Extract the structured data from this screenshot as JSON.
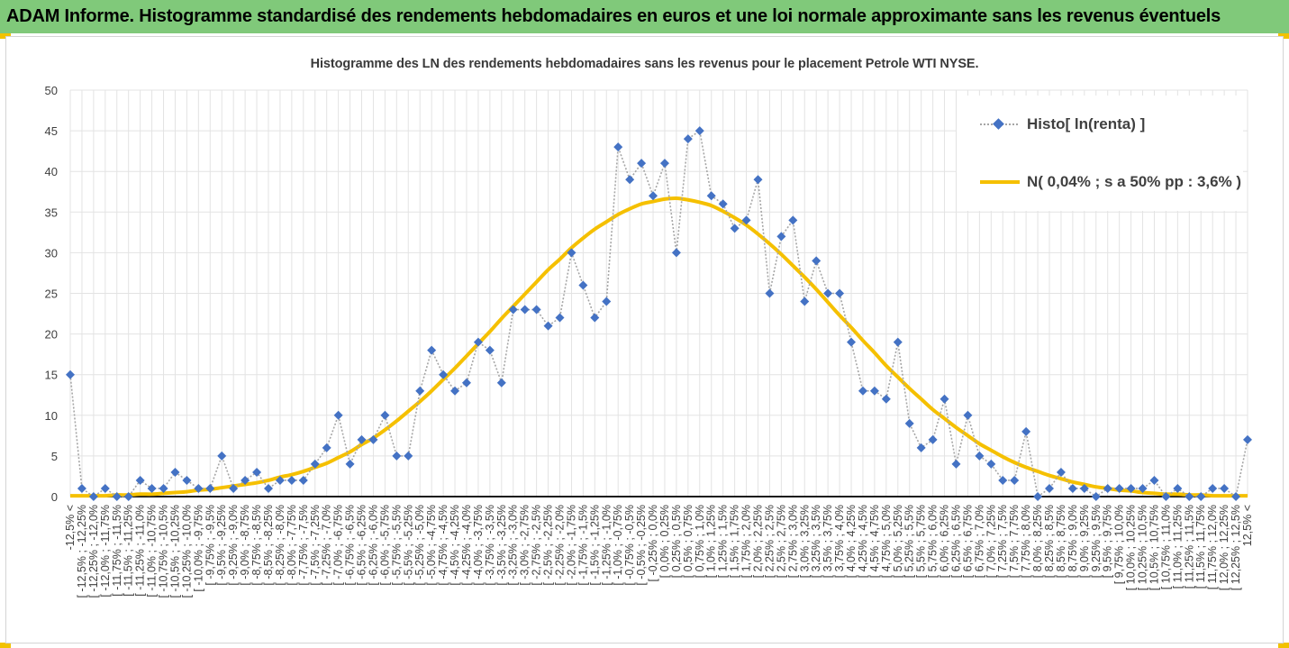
{
  "banner": {
    "title": "ADAM Informe. Histogramme standardisé des rendements hebdomadaires en euros et une loi normale approximante sans les revenus éventuels"
  },
  "colors": {
    "banner_bg": "#80c97a",
    "histo_series": "#4472c4",
    "histo_line": "#a6a6a6",
    "normal_curve": "#f5c000",
    "corner_accent": "#f2c200"
  },
  "chart_data": {
    "type": "line",
    "title": "Histogramme  des LN des rendements hebdomadaires sans les revenus pour le placement Petrole WTI NYSE.",
    "xlabel": "",
    "ylabel": "",
    "ylim": [
      0,
      50
    ],
    "yticks": [
      0,
      5,
      10,
      15,
      20,
      25,
      30,
      35,
      40,
      45,
      50
    ],
    "grid": true,
    "legend_position": "top-right",
    "categories": [
      "-12,5% <",
      "[ -12,5% ; -12,25%",
      "[ -12,25% ; -12,0%",
      "[ -12,0% ; -11,75%",
      "[ -11,75% ; -11,5%",
      "[ -11,5% ; -11,25%",
      "[ -11,25% ; -11,0%",
      "[ -11,0% ; -10,75%",
      "[ -10,75% ; -10,5%",
      "[ -10,5% ; -10,25%",
      "[ -10,25% ; -10,0%",
      "[ -10,0% ; -9,75%",
      "[ -9,75% ; -9,5%",
      "[ -9,5% ; -9,25%",
      "[ -9,25% ; -9,0%",
      "[ -9,0% ; -8,75%",
      "[ -8,75% ; -8,5%",
      "[ -8,5% ; -8,25%",
      "[ -8,25% ; -8,0%",
      "[ -8,0% ; -7,75%",
      "[ -7,75% ; -7,5%",
      "[ -7,5% ; -7,25%",
      "[ -7,25% ; -7,0%",
      "[ -7,0% ; -6,75%",
      "[ -6,75% ; -6,5%",
      "[ -6,5% ; -6,25%",
      "[ -6,25% ; -6,0%",
      "[ -6,0% ; -5,75%",
      "[ -5,75% ; -5,5%",
      "[ -5,5% ; -5,25%",
      "[ -5,25% ; -5,0%",
      "[ -5,0% ; -4,75%",
      "[ -4,75% ; -4,5%",
      "[ -4,5% ; -4,25%",
      "[ -4,25% ; -4,0%",
      "[ -4,0% ; -3,75%",
      "[ -3,75% ; -3,5%",
      "[ -3,5% ; -3,25%",
      "[ -3,25% ; -3,0%",
      "[ -3,0% ; -2,75%",
      "[ -2,75% ; -2,5%",
      "[ -2,5% ; -2,25%",
      "[ -2,25% ; -2,0%",
      "[ -2,0% ; -1,75%",
      "[ -1,75% ; -1,5%",
      "[ -1,5% ; -1,25%",
      "[ -1,25% ; -1,0%",
      "[ -1,0% ; -0,75%",
      "[ -0,75% ; -0,5%",
      "[ -0,5% ; -0,25%",
      "[ -0,25% ; 0,0%",
      "[ 0,0% ; 0,25%",
      "[ 0,25% ; 0,5%",
      "[ 0,5% ; 0,75%",
      "[ 0,75% ; 1,0%",
      "[ 1,0% ; 1,25%",
      "[ 1,25% ; 1,5%",
      "[ 1,5% ; 1,75%",
      "[ 1,75% ; 2,0%",
      "[ 2,0% ; 2,25%",
      "[ 2,25% ; 2,5%",
      "[ 2,5% ; 2,75%",
      "[ 2,75% ; 3,0%",
      "[ 3,0% ; 3,25%",
      "[ 3,25% ; 3,5%",
      "[ 3,5% ; 3,75%",
      "[ 3,75% ; 4,0%",
      "[ 4,0% ; 4,25%",
      "[ 4,25% ; 4,5%",
      "[ 4,5% ; 4,75%",
      "[ 4,75% ; 5,0%",
      "[ 5,0% ; 5,25%",
      "[ 5,25% ; 5,5%",
      "[ 5,5% ; 5,75%",
      "[ 5,75% ; 6,0%",
      "[ 6,0% ; 6,25%",
      "[ 6,25% ; 6,5%",
      "[ 6,5% ; 6,75%",
      "[ 6,75% ; 7,0%",
      "[ 7,0% ; 7,25%",
      "[ 7,25% ; 7,5%",
      "[ 7,5% ; 7,75%",
      "[ 7,75% ; 8,0%",
      "[ 8,0% ; 8,25%",
      "[ 8,25% ; 8,5%",
      "[ 8,5% ; 8,75%",
      "[ 8,75% ; 9,0%",
      "[ 9,0% ; 9,25%",
      "[ 9,25% ; 9,5%",
      "[ 9,5% ; 9,75%",
      "[ 9,75% ; 10,0%",
      "[ 10,0% ; 10,25%",
      "[ 10,25% ; 10,5%",
      "[ 10,5% ; 10,75%",
      "[ 10,75% ; 11,0%",
      "[ 11,0% ; 11,25%",
      "[ 11,25% ; 11,5%",
      "[ 11,5% ; 11,75%",
      "[ 11,75% ; 12,0%",
      "[ 12,0% ; 12,25%",
      "[ 12,25% ; 12,5%",
      "12,5% <"
    ],
    "series": [
      {
        "name": "Histo[ ln(renta) ]",
        "type": "line-markers",
        "values": [
          15,
          1,
          0,
          1,
          0,
          0,
          2,
          1,
          1,
          3,
          2,
          1,
          1,
          5,
          1,
          2,
          3,
          1,
          2,
          2,
          2,
          4,
          6,
          10,
          4,
          7,
          7,
          10,
          5,
          5,
          13,
          18,
          15,
          13,
          14,
          19,
          18,
          14,
          23,
          23,
          23,
          21,
          22,
          30,
          26,
          22,
          24,
          43,
          39,
          41,
          37,
          41,
          30,
          44,
          45,
          37,
          36,
          33,
          34,
          39,
          25,
          32,
          34,
          24,
          29,
          25,
          25,
          19,
          13,
          13,
          12,
          19,
          9,
          6,
          7,
          12,
          4,
          10,
          5,
          4,
          2,
          2,
          8,
          0,
          1,
          3,
          1,
          1,
          0,
          1,
          1,
          1,
          1,
          2,
          0,
          1,
          0,
          0,
          1,
          1,
          0,
          7
        ]
      },
      {
        "name": "N( 0,04% ; s a 50% pp : 3,6% )",
        "type": "line",
        "values": [
          0.1,
          0.1,
          0.1,
          0.1,
          0.2,
          0.2,
          0.3,
          0.3,
          0.4,
          0.5,
          0.6,
          0.8,
          0.9,
          1.1,
          1.3,
          1.5,
          1.7,
          2.0,
          2.4,
          2.7,
          3.1,
          3.6,
          4.1,
          4.8,
          5.5,
          6.4,
          7.2,
          8.2,
          9.3,
          10.5,
          11.7,
          13.0,
          14.4,
          15.8,
          17.3,
          18.8,
          20.3,
          21.9,
          23.4,
          24.9,
          26.4,
          27.9,
          29.2,
          30.6,
          31.8,
          32.9,
          33.8,
          34.7,
          35.4,
          36.0,
          36.3,
          36.6,
          36.7,
          36.5,
          36.2,
          35.8,
          35.1,
          34.3,
          33.4,
          32.3,
          31.1,
          29.8,
          28.4,
          27.0,
          25.5,
          23.9,
          22.3,
          20.8,
          19.2,
          17.7,
          16.1,
          14.7,
          13.3,
          12.0,
          10.7,
          9.6,
          8.5,
          7.5,
          6.5,
          5.7,
          4.9,
          4.2,
          3.6,
          3.1,
          2.6,
          2.2,
          1.8,
          1.5,
          1.2,
          1.0,
          0.8,
          0.7,
          0.5,
          0.4,
          0.3,
          0.3,
          0.2,
          0.2,
          0.1,
          0.1,
          0.1,
          0.1
        ]
      }
    ]
  }
}
